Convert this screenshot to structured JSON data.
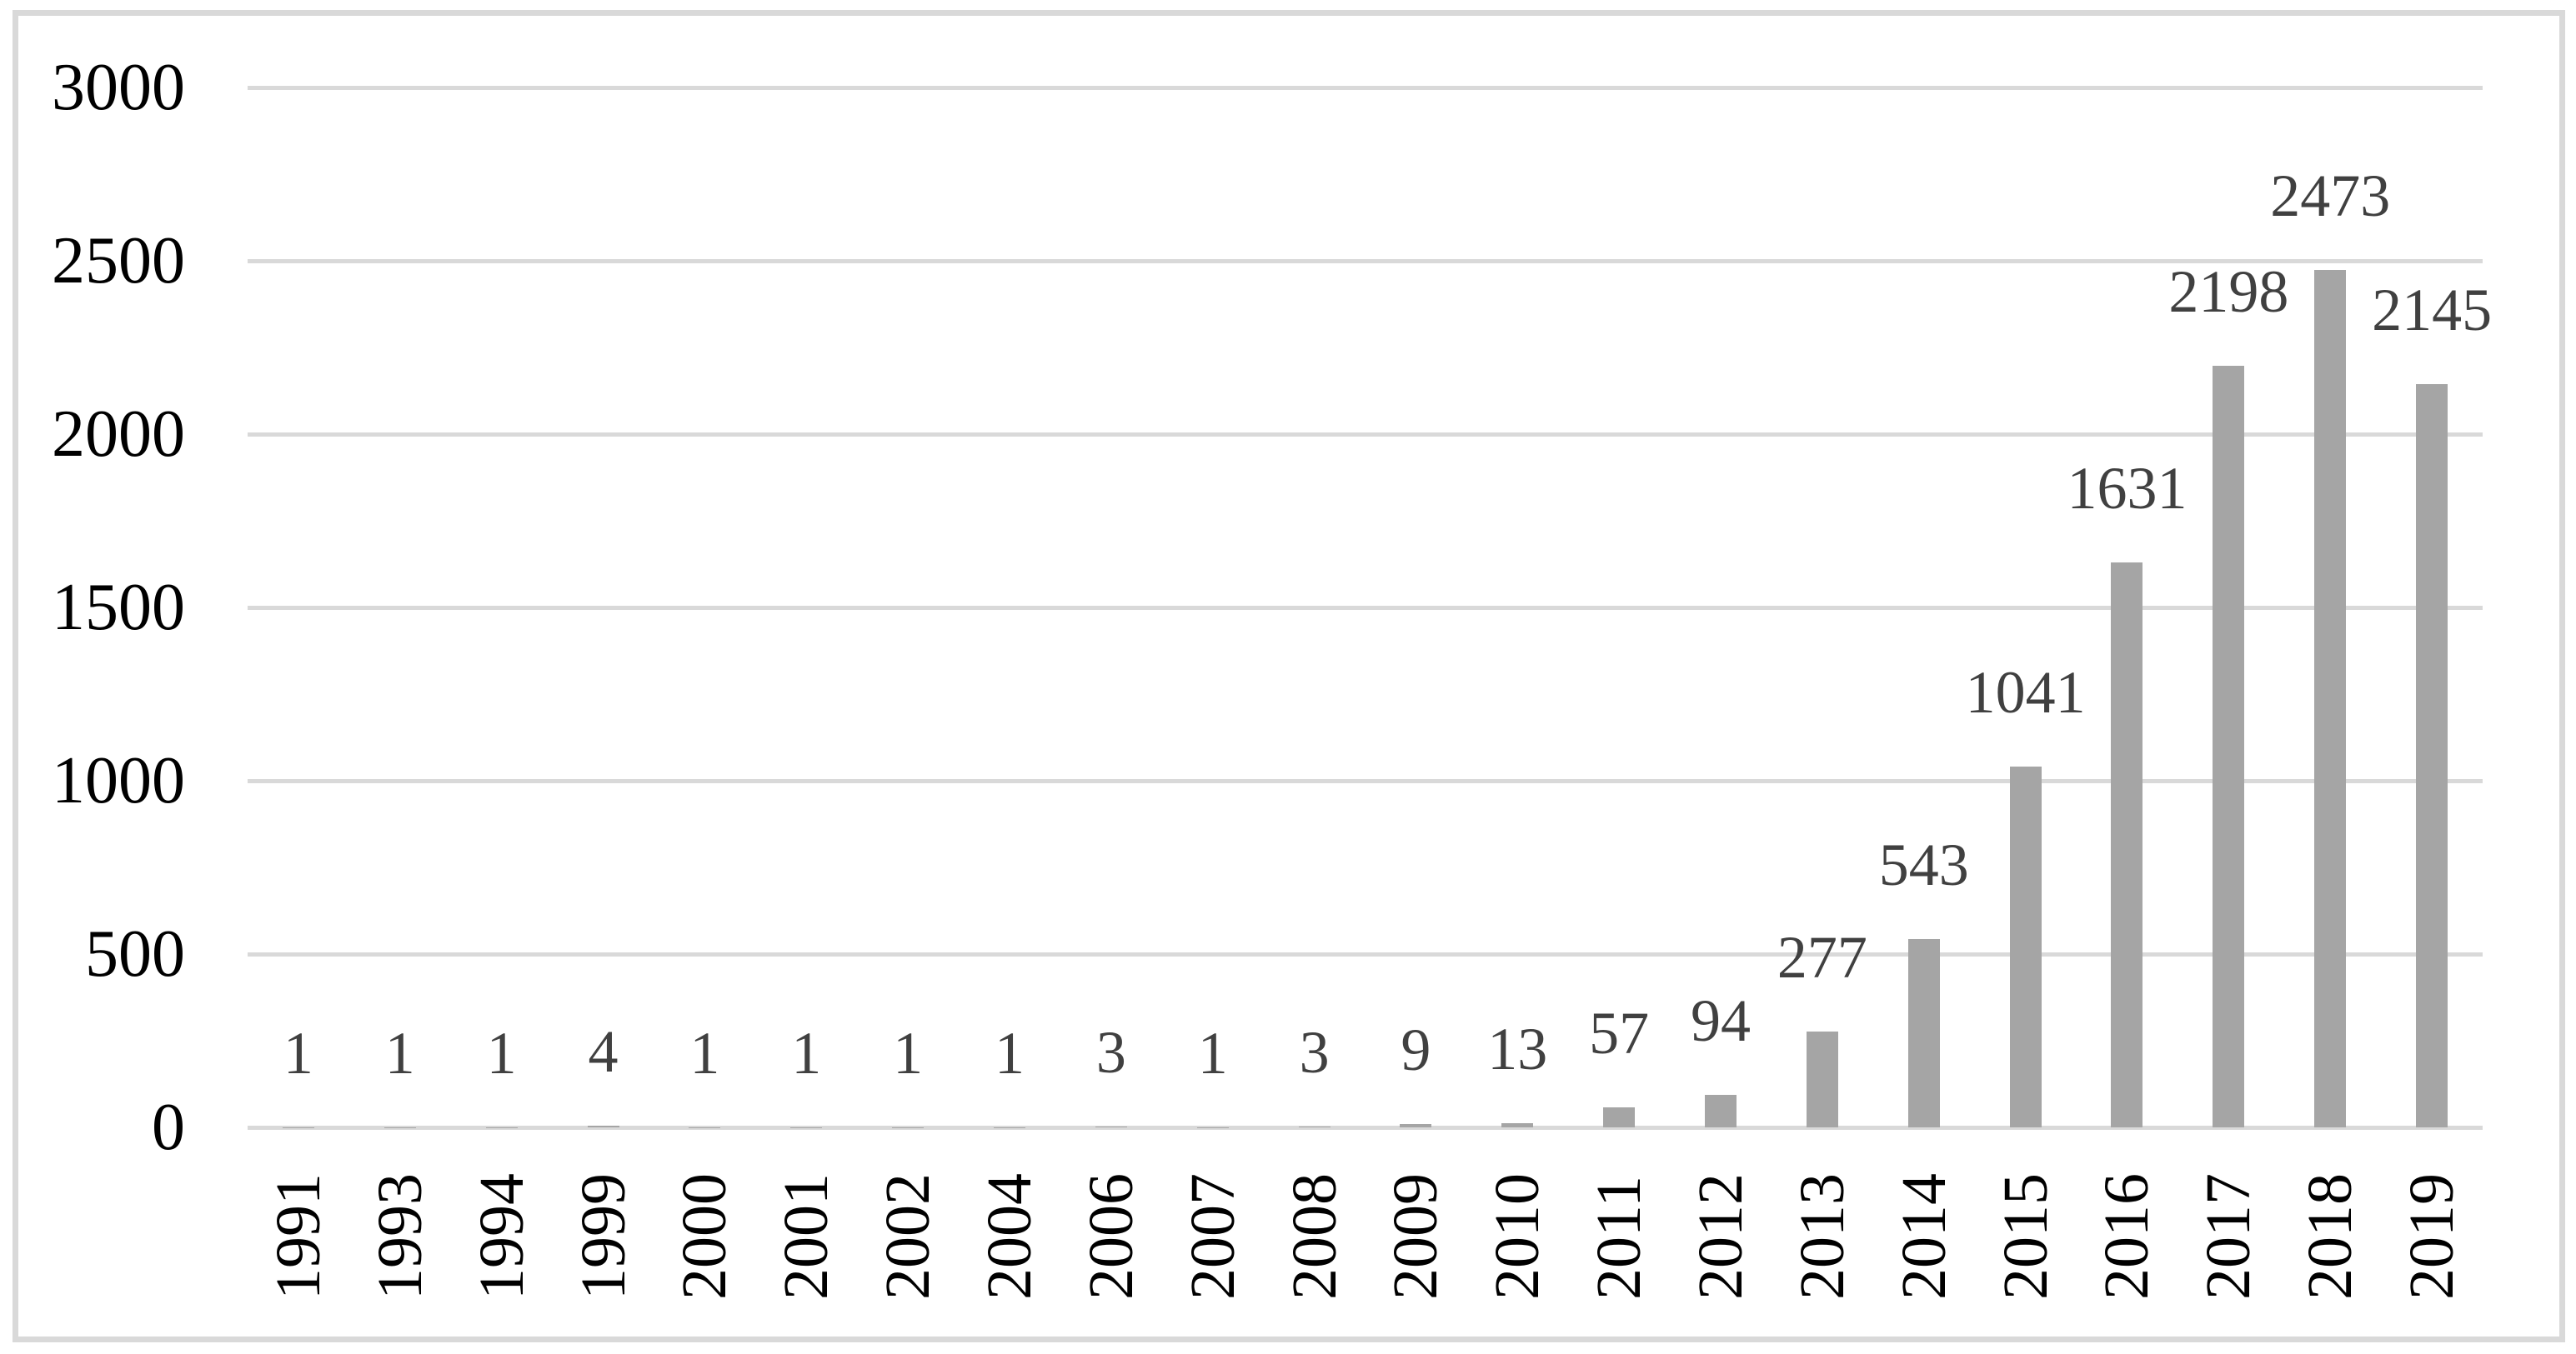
{
  "figure": {
    "background_color": "#ffffff",
    "frame_color": "#d9d9d9"
  },
  "chart_data": {
    "type": "bar",
    "title": "",
    "xlabel": "",
    "ylabel": "",
    "categories": [
      "1991",
      "1993",
      "1994",
      "1999",
      "2000",
      "2001",
      "2002",
      "2004",
      "2006",
      "2007",
      "2008",
      "2009",
      "2010",
      "2011",
      "2012",
      "2013",
      "2014",
      "2015",
      "2016",
      "2017",
      "2018",
      "2019"
    ],
    "values": [
      1,
      1,
      1,
      4,
      1,
      1,
      1,
      1,
      3,
      1,
      3,
      9,
      13,
      57,
      94,
      277,
      543,
      1041,
      1631,
      2198,
      2473,
      2145
    ],
    "yticks": [
      0,
      500,
      1000,
      1500,
      2000,
      2500,
      3000
    ],
    "ylim": [
      0,
      3000
    ],
    "grid": "horizontal",
    "legend_position": "none",
    "data_label_position": "outside-end",
    "x_tick_rotation_deg": -90,
    "bar_color": "#a5a5a5",
    "gridline_color": "#d9d9d9",
    "data_label_color": "#404040",
    "axis_text_color": "#000000"
  }
}
